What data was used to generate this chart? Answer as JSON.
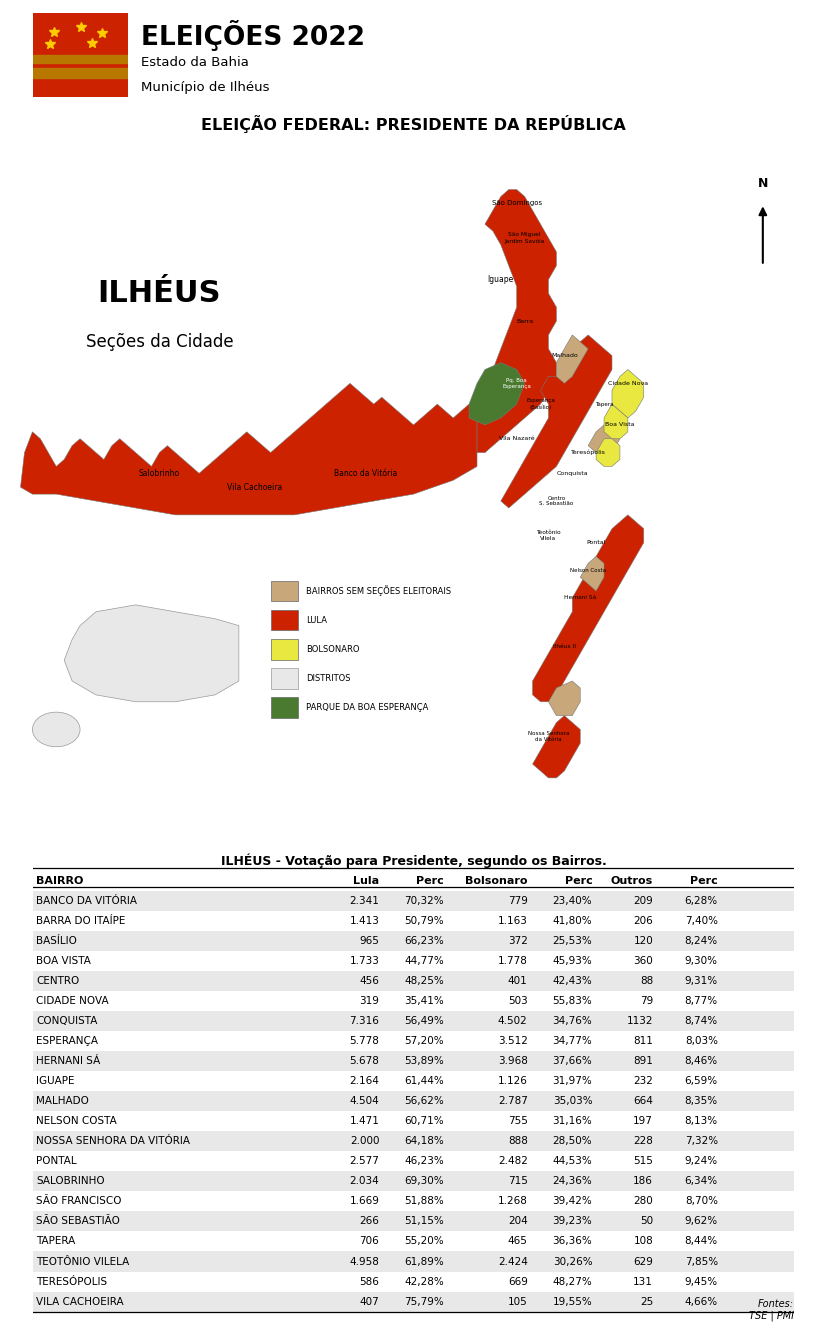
{
  "title_main": "ELEIÇÕES 2022",
  "subtitle1": "Estado da Bahia",
  "subtitle2": "Município de Ilhéus",
  "election_title": "ELEIÇÃO FEDERAL: PRESIDENTE DA REPÚBLICA",
  "map_title": "ILHÉUS",
  "map_subtitle": "Seções da Cidade",
  "table_title": "ILHÉUS - Votação para Presidente, segundo os Bairros.",
  "sources": "Fontes:\nTSE | PMI",
  "columns": [
    "BAIRRO",
    "Lula",
    "Perc",
    "Bolsonaro",
    "Perc",
    "Outros",
    "Perc"
  ],
  "rows": [
    [
      "BANCO DA VITÓRIA",
      "2.341",
      "70,32%",
      "779",
      "23,40%",
      "209",
      "6,28%"
    ],
    [
      "BARRA DO ITAÍPE",
      "1.413",
      "50,79%",
      "1.163",
      "41,80%",
      "206",
      "7,40%"
    ],
    [
      "BASÍLIO",
      "965",
      "66,23%",
      "372",
      "25,53%",
      "120",
      "8,24%"
    ],
    [
      "BOA VISTA",
      "1.733",
      "44,77%",
      "1.778",
      "45,93%",
      "360",
      "9,30%"
    ],
    [
      "CENTRO",
      "456",
      "48,25%",
      "401",
      "42,43%",
      "88",
      "9,31%"
    ],
    [
      "CIDADE NOVA",
      "319",
      "35,41%",
      "503",
      "55,83%",
      "79",
      "8,77%"
    ],
    [
      "CONQUISTA",
      "7.316",
      "56,49%",
      "4.502",
      "34,76%",
      "1132",
      "8,74%"
    ],
    [
      "ESPERANÇA",
      "5.778",
      "57,20%",
      "3.512",
      "34,77%",
      "811",
      "8,03%"
    ],
    [
      "HERNANI SÁ",
      "5.678",
      "53,89%",
      "3.968",
      "37,66%",
      "891",
      "8,46%"
    ],
    [
      "IGUAPE",
      "2.164",
      "61,44%",
      "1.126",
      "31,97%",
      "232",
      "6,59%"
    ],
    [
      "MALHADO",
      "4.504",
      "56,62%",
      "2.787",
      "35,03%",
      "664",
      "8,35%"
    ],
    [
      "NELSON COSTA",
      "1.471",
      "60,71%",
      "755",
      "31,16%",
      "197",
      "8,13%"
    ],
    [
      "NOSSA SENHORA DA VITÓRIA",
      "2.000",
      "64,18%",
      "888",
      "28,50%",
      "228",
      "7,32%"
    ],
    [
      "PONTAL",
      "2.577",
      "46,23%",
      "2.482",
      "44,53%",
      "515",
      "9,24%"
    ],
    [
      "SALOBRINHO",
      "2.034",
      "69,30%",
      "715",
      "24,36%",
      "186",
      "6,34%"
    ],
    [
      "SÃO FRANCISCO",
      "1.669",
      "51,88%",
      "1.268",
      "39,42%",
      "280",
      "8,70%"
    ],
    [
      "SÃO SEBASTIÃO",
      "266",
      "51,15%",
      "204",
      "39,23%",
      "50",
      "9,62%"
    ],
    [
      "TAPERA",
      "706",
      "55,20%",
      "465",
      "36,36%",
      "108",
      "8,44%"
    ],
    [
      "TEOTÔNIO VILELA",
      "4.958",
      "61,89%",
      "2.424",
      "30,26%",
      "629",
      "7,85%"
    ],
    [
      "TERESÓPOLIS",
      "586",
      "42,28%",
      "669",
      "48,27%",
      "131",
      "9,45%"
    ],
    [
      "VILA CACHOEIRA",
      "407",
      "75,79%",
      "105",
      "19,55%",
      "25",
      "4,66%"
    ]
  ],
  "row_alt_color": "#e8e8e8",
  "row_plain_color": "#ffffff",
  "flag_red": "#cc2200",
  "flag_yellow": "#ffcc00",
  "flag_gold": "#b87800",
  "map_red": "#cc2200",
  "map_tan": "#c8a87a",
  "map_yellow": "#e8e840",
  "map_green": "#4a7a30",
  "map_district": "#e8e8e8",
  "legend_border": "#888888"
}
